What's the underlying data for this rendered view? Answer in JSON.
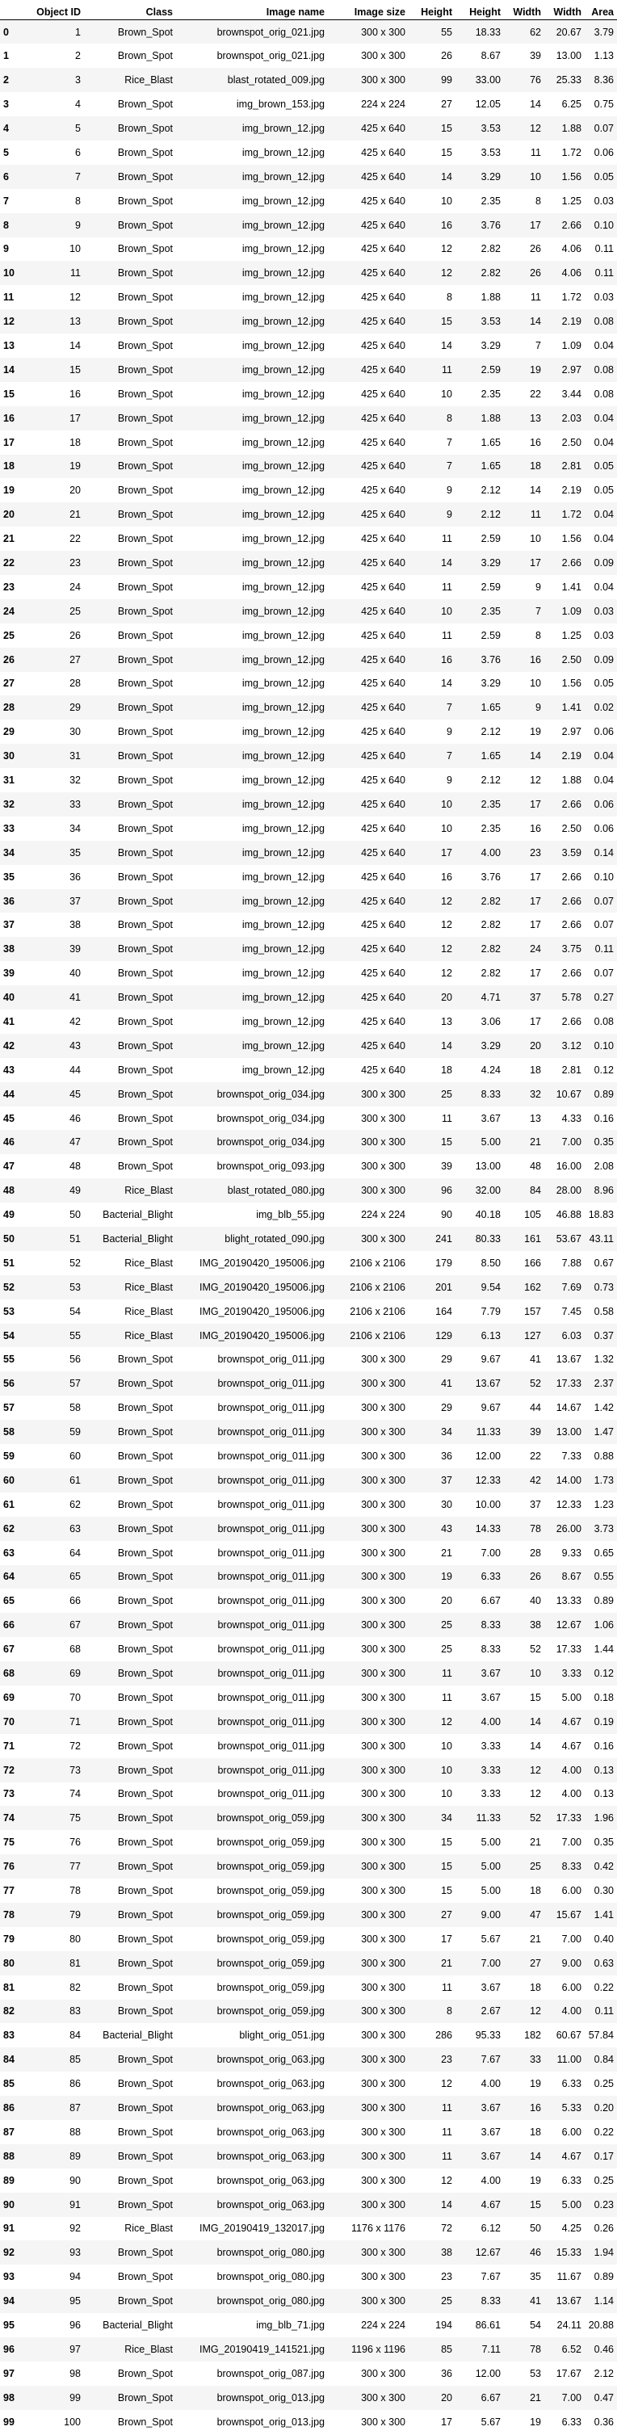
{
  "table": {
    "columns": [
      "",
      "Object ID",
      "Class",
      "Image name",
      "Image size",
      "Height",
      "Height",
      "Width",
      "Width",
      "Area"
    ],
    "rows": [
      [
        "0",
        "1",
        "Brown_Spot",
        "brownspot_orig_021.jpg",
        "300 x 300",
        "55",
        "18.33",
        "62",
        "20.67",
        "3.79"
      ],
      [
        "1",
        "2",
        "Brown_Spot",
        "brownspot_orig_021.jpg",
        "300 x 300",
        "26",
        "8.67",
        "39",
        "13.00",
        "1.13"
      ],
      [
        "2",
        "3",
        "Rice_Blast",
        "blast_rotated_009.jpg",
        "300 x 300",
        "99",
        "33.00",
        "76",
        "25.33",
        "8.36"
      ],
      [
        "3",
        "4",
        "Brown_Spot",
        "img_brown_153.jpg",
        "224 x 224",
        "27",
        "12.05",
        "14",
        "6.25",
        "0.75"
      ],
      [
        "4",
        "5",
        "Brown_Spot",
        "img_brown_12.jpg",
        "425 x 640",
        "15",
        "3.53",
        "12",
        "1.88",
        "0.07"
      ],
      [
        "5",
        "6",
        "Brown_Spot",
        "img_brown_12.jpg",
        "425 x 640",
        "15",
        "3.53",
        "11",
        "1.72",
        "0.06"
      ],
      [
        "6",
        "7",
        "Brown_Spot",
        "img_brown_12.jpg",
        "425 x 640",
        "14",
        "3.29",
        "10",
        "1.56",
        "0.05"
      ],
      [
        "7",
        "8",
        "Brown_Spot",
        "img_brown_12.jpg",
        "425 x 640",
        "10",
        "2.35",
        "8",
        "1.25",
        "0.03"
      ],
      [
        "8",
        "9",
        "Brown_Spot",
        "img_brown_12.jpg",
        "425 x 640",
        "16",
        "3.76",
        "17",
        "2.66",
        "0.10"
      ],
      [
        "9",
        "10",
        "Brown_Spot",
        "img_brown_12.jpg",
        "425 x 640",
        "12",
        "2.82",
        "26",
        "4.06",
        "0.11"
      ],
      [
        "10",
        "11",
        "Brown_Spot",
        "img_brown_12.jpg",
        "425 x 640",
        "12",
        "2.82",
        "26",
        "4.06",
        "0.11"
      ],
      [
        "11",
        "12",
        "Brown_Spot",
        "img_brown_12.jpg",
        "425 x 640",
        "8",
        "1.88",
        "11",
        "1.72",
        "0.03"
      ],
      [
        "12",
        "13",
        "Brown_Spot",
        "img_brown_12.jpg",
        "425 x 640",
        "15",
        "3.53",
        "14",
        "2.19",
        "0.08"
      ],
      [
        "13",
        "14",
        "Brown_Spot",
        "img_brown_12.jpg",
        "425 x 640",
        "14",
        "3.29",
        "7",
        "1.09",
        "0.04"
      ],
      [
        "14",
        "15",
        "Brown_Spot",
        "img_brown_12.jpg",
        "425 x 640",
        "11",
        "2.59",
        "19",
        "2.97",
        "0.08"
      ],
      [
        "15",
        "16",
        "Brown_Spot",
        "img_brown_12.jpg",
        "425 x 640",
        "10",
        "2.35",
        "22",
        "3.44",
        "0.08"
      ],
      [
        "16",
        "17",
        "Brown_Spot",
        "img_brown_12.jpg",
        "425 x 640",
        "8",
        "1.88",
        "13",
        "2.03",
        "0.04"
      ],
      [
        "17",
        "18",
        "Brown_Spot",
        "img_brown_12.jpg",
        "425 x 640",
        "7",
        "1.65",
        "16",
        "2.50",
        "0.04"
      ],
      [
        "18",
        "19",
        "Brown_Spot",
        "img_brown_12.jpg",
        "425 x 640",
        "7",
        "1.65",
        "18",
        "2.81",
        "0.05"
      ],
      [
        "19",
        "20",
        "Brown_Spot",
        "img_brown_12.jpg",
        "425 x 640",
        "9",
        "2.12",
        "14",
        "2.19",
        "0.05"
      ],
      [
        "20",
        "21",
        "Brown_Spot",
        "img_brown_12.jpg",
        "425 x 640",
        "9",
        "2.12",
        "11",
        "1.72",
        "0.04"
      ],
      [
        "21",
        "22",
        "Brown_Spot",
        "img_brown_12.jpg",
        "425 x 640",
        "11",
        "2.59",
        "10",
        "1.56",
        "0.04"
      ],
      [
        "22",
        "23",
        "Brown_Spot",
        "img_brown_12.jpg",
        "425 x 640",
        "14",
        "3.29",
        "17",
        "2.66",
        "0.09"
      ],
      [
        "23",
        "24",
        "Brown_Spot",
        "img_brown_12.jpg",
        "425 x 640",
        "11",
        "2.59",
        "9",
        "1.41",
        "0.04"
      ],
      [
        "24",
        "25",
        "Brown_Spot",
        "img_brown_12.jpg",
        "425 x 640",
        "10",
        "2.35",
        "7",
        "1.09",
        "0.03"
      ],
      [
        "25",
        "26",
        "Brown_Spot",
        "img_brown_12.jpg",
        "425 x 640",
        "11",
        "2.59",
        "8",
        "1.25",
        "0.03"
      ],
      [
        "26",
        "27",
        "Brown_Spot",
        "img_brown_12.jpg",
        "425 x 640",
        "16",
        "3.76",
        "16",
        "2.50",
        "0.09"
      ],
      [
        "27",
        "28",
        "Brown_Spot",
        "img_brown_12.jpg",
        "425 x 640",
        "14",
        "3.29",
        "10",
        "1.56",
        "0.05"
      ],
      [
        "28",
        "29",
        "Brown_Spot",
        "img_brown_12.jpg",
        "425 x 640",
        "7",
        "1.65",
        "9",
        "1.41",
        "0.02"
      ],
      [
        "29",
        "30",
        "Brown_Spot",
        "img_brown_12.jpg",
        "425 x 640",
        "9",
        "2.12",
        "19",
        "2.97",
        "0.06"
      ],
      [
        "30",
        "31",
        "Brown_Spot",
        "img_brown_12.jpg",
        "425 x 640",
        "7",
        "1.65",
        "14",
        "2.19",
        "0.04"
      ],
      [
        "31",
        "32",
        "Brown_Spot",
        "img_brown_12.jpg",
        "425 x 640",
        "9",
        "2.12",
        "12",
        "1.88",
        "0.04"
      ],
      [
        "32",
        "33",
        "Brown_Spot",
        "img_brown_12.jpg",
        "425 x 640",
        "10",
        "2.35",
        "17",
        "2.66",
        "0.06"
      ],
      [
        "33",
        "34",
        "Brown_Spot",
        "img_brown_12.jpg",
        "425 x 640",
        "10",
        "2.35",
        "16",
        "2.50",
        "0.06"
      ],
      [
        "34",
        "35",
        "Brown_Spot",
        "img_brown_12.jpg",
        "425 x 640",
        "17",
        "4.00",
        "23",
        "3.59",
        "0.14"
      ],
      [
        "35",
        "36",
        "Brown_Spot",
        "img_brown_12.jpg",
        "425 x 640",
        "16",
        "3.76",
        "17",
        "2.66",
        "0.10"
      ],
      [
        "36",
        "37",
        "Brown_Spot",
        "img_brown_12.jpg",
        "425 x 640",
        "12",
        "2.82",
        "17",
        "2.66",
        "0.07"
      ],
      [
        "37",
        "38",
        "Brown_Spot",
        "img_brown_12.jpg",
        "425 x 640",
        "12",
        "2.82",
        "17",
        "2.66",
        "0.07"
      ],
      [
        "38",
        "39",
        "Brown_Spot",
        "img_brown_12.jpg",
        "425 x 640",
        "12",
        "2.82",
        "24",
        "3.75",
        "0.11"
      ],
      [
        "39",
        "40",
        "Brown_Spot",
        "img_brown_12.jpg",
        "425 x 640",
        "12",
        "2.82",
        "17",
        "2.66",
        "0.07"
      ],
      [
        "40",
        "41",
        "Brown_Spot",
        "img_brown_12.jpg",
        "425 x 640",
        "20",
        "4.71",
        "37",
        "5.78",
        "0.27"
      ],
      [
        "41",
        "42",
        "Brown_Spot",
        "img_brown_12.jpg",
        "425 x 640",
        "13",
        "3.06",
        "17",
        "2.66",
        "0.08"
      ],
      [
        "42",
        "43",
        "Brown_Spot",
        "img_brown_12.jpg",
        "425 x 640",
        "14",
        "3.29",
        "20",
        "3.12",
        "0.10"
      ],
      [
        "43",
        "44",
        "Brown_Spot",
        "img_brown_12.jpg",
        "425 x 640",
        "18",
        "4.24",
        "18",
        "2.81",
        "0.12"
      ],
      [
        "44",
        "45",
        "Brown_Spot",
        "brownspot_orig_034.jpg",
        "300 x 300",
        "25",
        "8.33",
        "32",
        "10.67",
        "0.89"
      ],
      [
        "45",
        "46",
        "Brown_Spot",
        "brownspot_orig_034.jpg",
        "300 x 300",
        "11",
        "3.67",
        "13",
        "4.33",
        "0.16"
      ],
      [
        "46",
        "47",
        "Brown_Spot",
        "brownspot_orig_034.jpg",
        "300 x 300",
        "15",
        "5.00",
        "21",
        "7.00",
        "0.35"
      ],
      [
        "47",
        "48",
        "Brown_Spot",
        "brownspot_orig_093.jpg",
        "300 x 300",
        "39",
        "13.00",
        "48",
        "16.00",
        "2.08"
      ],
      [
        "48",
        "49",
        "Rice_Blast",
        "blast_rotated_080.jpg",
        "300 x 300",
        "96",
        "32.00",
        "84",
        "28.00",
        "8.96"
      ],
      [
        "49",
        "50",
        "Bacterial_Blight",
        "img_blb_55.jpg",
        "224 x 224",
        "90",
        "40.18",
        "105",
        "46.88",
        "18.83"
      ],
      [
        "50",
        "51",
        "Bacterial_Blight",
        "blight_rotated_090.jpg",
        "300 x 300",
        "241",
        "80.33",
        "161",
        "53.67",
        "43.11"
      ],
      [
        "51",
        "52",
        "Rice_Blast",
        "IMG_20190420_195006.jpg",
        "2106 x 2106",
        "179",
        "8.50",
        "166",
        "7.88",
        "0.67"
      ],
      [
        "52",
        "53",
        "Rice_Blast",
        "IMG_20190420_195006.jpg",
        "2106 x 2106",
        "201",
        "9.54",
        "162",
        "7.69",
        "0.73"
      ],
      [
        "53",
        "54",
        "Rice_Blast",
        "IMG_20190420_195006.jpg",
        "2106 x 2106",
        "164",
        "7.79",
        "157",
        "7.45",
        "0.58"
      ],
      [
        "54",
        "55",
        "Rice_Blast",
        "IMG_20190420_195006.jpg",
        "2106 x 2106",
        "129",
        "6.13",
        "127",
        "6.03",
        "0.37"
      ],
      [
        "55",
        "56",
        "Brown_Spot",
        "brownspot_orig_011.jpg",
        "300 x 300",
        "29",
        "9.67",
        "41",
        "13.67",
        "1.32"
      ],
      [
        "56",
        "57",
        "Brown_Spot",
        "brownspot_orig_011.jpg",
        "300 x 300",
        "41",
        "13.67",
        "52",
        "17.33",
        "2.37"
      ],
      [
        "57",
        "58",
        "Brown_Spot",
        "brownspot_orig_011.jpg",
        "300 x 300",
        "29",
        "9.67",
        "44",
        "14.67",
        "1.42"
      ],
      [
        "58",
        "59",
        "Brown_Spot",
        "brownspot_orig_011.jpg",
        "300 x 300",
        "34",
        "11.33",
        "39",
        "13.00",
        "1.47"
      ],
      [
        "59",
        "60",
        "Brown_Spot",
        "brownspot_orig_011.jpg",
        "300 x 300",
        "36",
        "12.00",
        "22",
        "7.33",
        "0.88"
      ],
      [
        "60",
        "61",
        "Brown_Spot",
        "brownspot_orig_011.jpg",
        "300 x 300",
        "37",
        "12.33",
        "42",
        "14.00",
        "1.73"
      ],
      [
        "61",
        "62",
        "Brown_Spot",
        "brownspot_orig_011.jpg",
        "300 x 300",
        "30",
        "10.00",
        "37",
        "12.33",
        "1.23"
      ],
      [
        "62",
        "63",
        "Brown_Spot",
        "brownspot_orig_011.jpg",
        "300 x 300",
        "43",
        "14.33",
        "78",
        "26.00",
        "3.73"
      ],
      [
        "63",
        "64",
        "Brown_Spot",
        "brownspot_orig_011.jpg",
        "300 x 300",
        "21",
        "7.00",
        "28",
        "9.33",
        "0.65"
      ],
      [
        "64",
        "65",
        "Brown_Spot",
        "brownspot_orig_011.jpg",
        "300 x 300",
        "19",
        "6.33",
        "26",
        "8.67",
        "0.55"
      ],
      [
        "65",
        "66",
        "Brown_Spot",
        "brownspot_orig_011.jpg",
        "300 x 300",
        "20",
        "6.67",
        "40",
        "13.33",
        "0.89"
      ],
      [
        "66",
        "67",
        "Brown_Spot",
        "brownspot_orig_011.jpg",
        "300 x 300",
        "25",
        "8.33",
        "38",
        "12.67",
        "1.06"
      ],
      [
        "67",
        "68",
        "Brown_Spot",
        "brownspot_orig_011.jpg",
        "300 x 300",
        "25",
        "8.33",
        "52",
        "17.33",
        "1.44"
      ],
      [
        "68",
        "69",
        "Brown_Spot",
        "brownspot_orig_011.jpg",
        "300 x 300",
        "11",
        "3.67",
        "10",
        "3.33",
        "0.12"
      ],
      [
        "69",
        "70",
        "Brown_Spot",
        "brownspot_orig_011.jpg",
        "300 x 300",
        "11",
        "3.67",
        "15",
        "5.00",
        "0.18"
      ],
      [
        "70",
        "71",
        "Brown_Spot",
        "brownspot_orig_011.jpg",
        "300 x 300",
        "12",
        "4.00",
        "14",
        "4.67",
        "0.19"
      ],
      [
        "71",
        "72",
        "Brown_Spot",
        "brownspot_orig_011.jpg",
        "300 x 300",
        "10",
        "3.33",
        "14",
        "4.67",
        "0.16"
      ],
      [
        "72",
        "73",
        "Brown_Spot",
        "brownspot_orig_011.jpg",
        "300 x 300",
        "10",
        "3.33",
        "12",
        "4.00",
        "0.13"
      ],
      [
        "73",
        "74",
        "Brown_Spot",
        "brownspot_orig_011.jpg",
        "300 x 300",
        "10",
        "3.33",
        "12",
        "4.00",
        "0.13"
      ],
      [
        "74",
        "75",
        "Brown_Spot",
        "brownspot_orig_059.jpg",
        "300 x 300",
        "34",
        "11.33",
        "52",
        "17.33",
        "1.96"
      ],
      [
        "75",
        "76",
        "Brown_Spot",
        "brownspot_orig_059.jpg",
        "300 x 300",
        "15",
        "5.00",
        "21",
        "7.00",
        "0.35"
      ],
      [
        "76",
        "77",
        "Brown_Spot",
        "brownspot_orig_059.jpg",
        "300 x 300",
        "15",
        "5.00",
        "25",
        "8.33",
        "0.42"
      ],
      [
        "77",
        "78",
        "Brown_Spot",
        "brownspot_orig_059.jpg",
        "300 x 300",
        "15",
        "5.00",
        "18",
        "6.00",
        "0.30"
      ],
      [
        "78",
        "79",
        "Brown_Spot",
        "brownspot_orig_059.jpg",
        "300 x 300",
        "27",
        "9.00",
        "47",
        "15.67",
        "1.41"
      ],
      [
        "79",
        "80",
        "Brown_Spot",
        "brownspot_orig_059.jpg",
        "300 x 300",
        "17",
        "5.67",
        "21",
        "7.00",
        "0.40"
      ],
      [
        "80",
        "81",
        "Brown_Spot",
        "brownspot_orig_059.jpg",
        "300 x 300",
        "21",
        "7.00",
        "27",
        "9.00",
        "0.63"
      ],
      [
        "81",
        "82",
        "Brown_Spot",
        "brownspot_orig_059.jpg",
        "300 x 300",
        "11",
        "3.67",
        "18",
        "6.00",
        "0.22"
      ],
      [
        "82",
        "83",
        "Brown_Spot",
        "brownspot_orig_059.jpg",
        "300 x 300",
        "8",
        "2.67",
        "12",
        "4.00",
        "0.11"
      ],
      [
        "83",
        "84",
        "Bacterial_Blight",
        "blight_orig_051.jpg",
        "300 x 300",
        "286",
        "95.33",
        "182",
        "60.67",
        "57.84"
      ],
      [
        "84",
        "85",
        "Brown_Spot",
        "brownspot_orig_063.jpg",
        "300 x 300",
        "23",
        "7.67",
        "33",
        "11.00",
        "0.84"
      ],
      [
        "85",
        "86",
        "Brown_Spot",
        "brownspot_orig_063.jpg",
        "300 x 300",
        "12",
        "4.00",
        "19",
        "6.33",
        "0.25"
      ],
      [
        "86",
        "87",
        "Brown_Spot",
        "brownspot_orig_063.jpg",
        "300 x 300",
        "11",
        "3.67",
        "16",
        "5.33",
        "0.20"
      ],
      [
        "87",
        "88",
        "Brown_Spot",
        "brownspot_orig_063.jpg",
        "300 x 300",
        "11",
        "3.67",
        "18",
        "6.00",
        "0.22"
      ],
      [
        "88",
        "89",
        "Brown_Spot",
        "brownspot_orig_063.jpg",
        "300 x 300",
        "11",
        "3.67",
        "14",
        "4.67",
        "0.17"
      ],
      [
        "89",
        "90",
        "Brown_Spot",
        "brownspot_orig_063.jpg",
        "300 x 300",
        "12",
        "4.00",
        "19",
        "6.33",
        "0.25"
      ],
      [
        "90",
        "91",
        "Brown_Spot",
        "brownspot_orig_063.jpg",
        "300 x 300",
        "14",
        "4.67",
        "15",
        "5.00",
        "0.23"
      ],
      [
        "91",
        "92",
        "Rice_Blast",
        "IMG_20190419_132017.jpg",
        "1176 x 1176",
        "72",
        "6.12",
        "50",
        "4.25",
        "0.26"
      ],
      [
        "92",
        "93",
        "Brown_Spot",
        "brownspot_orig_080.jpg",
        "300 x 300",
        "38",
        "12.67",
        "46",
        "15.33",
        "1.94"
      ],
      [
        "93",
        "94",
        "Brown_Spot",
        "brownspot_orig_080.jpg",
        "300 x 300",
        "23",
        "7.67",
        "35",
        "11.67",
        "0.89"
      ],
      [
        "94",
        "95",
        "Brown_Spot",
        "brownspot_orig_080.jpg",
        "300 x 300",
        "25",
        "8.33",
        "41",
        "13.67",
        "1.14"
      ],
      [
        "95",
        "96",
        "Bacterial_Blight",
        "img_blb_71.jpg",
        "224 x 224",
        "194",
        "86.61",
        "54",
        "24.11",
        "20.88"
      ],
      [
        "96",
        "97",
        "Rice_Blast",
        "IMG_20190419_141521.jpg",
        "1196 x 1196",
        "85",
        "7.11",
        "78",
        "6.52",
        "0.46"
      ],
      [
        "97",
        "98",
        "Brown_Spot",
        "brownspot_orig_087.jpg",
        "300 x 300",
        "36",
        "12.00",
        "53",
        "17.67",
        "2.12"
      ],
      [
        "98",
        "99",
        "Brown_Spot",
        "brownspot_orig_013.jpg",
        "300 x 300",
        "20",
        "6.67",
        "21",
        "7.00",
        "0.47"
      ],
      [
        "99",
        "100",
        "Brown_Spot",
        "brownspot_orig_013.jpg",
        "300 x 300",
        "17",
        "5.67",
        "19",
        "6.33",
        "0.36"
      ]
    ]
  }
}
